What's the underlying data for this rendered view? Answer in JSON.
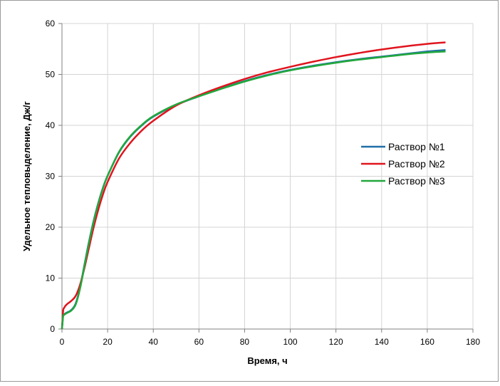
{
  "chart_data": {
    "type": "line",
    "xlabel": "Время, ч",
    "ylabel": "Удельное тепловыделение, Дж/г",
    "xlim": [
      0,
      180
    ],
    "ylim": [
      0,
      60
    ],
    "xticks": [
      0,
      20,
      40,
      60,
      80,
      100,
      120,
      140,
      160,
      180
    ],
    "yticks": [
      0,
      10,
      20,
      30,
      40,
      50,
      60
    ],
    "grid": true,
    "legend_position": "right",
    "series": [
      {
        "name": "Раствор №1",
        "color": "#1f6fa8",
        "x": [
          0,
          0.5,
          1,
          2,
          4,
          6,
          8,
          10,
          12,
          14,
          16,
          18,
          20,
          25,
          30,
          35,
          40,
          50,
          60,
          70,
          80,
          90,
          100,
          110,
          120,
          130,
          140,
          150,
          160,
          168
        ],
        "y": [
          0,
          2.6,
          2.9,
          3.2,
          3.7,
          5.0,
          8.3,
          13.0,
          17.5,
          21.5,
          24.9,
          27.8,
          30.1,
          34.7,
          37.8,
          40.0,
          41.7,
          44.0,
          45.7,
          47.3,
          48.7,
          49.9,
          50.9,
          51.7,
          52.4,
          53.0,
          53.5,
          54.0,
          54.5,
          54.8
        ]
      },
      {
        "name": "Раствор №2",
        "color": "#e0141e",
        "x": [
          0,
          0.5,
          1,
          2,
          4,
          6,
          8,
          10,
          12,
          14,
          16,
          18,
          20,
          25,
          30,
          35,
          40,
          50,
          60,
          70,
          80,
          90,
          100,
          110,
          120,
          130,
          140,
          150,
          160,
          168
        ],
        "y": [
          0,
          3.5,
          4.2,
          4.8,
          5.5,
          6.5,
          8.8,
          12.3,
          16.3,
          20.2,
          23.6,
          26.5,
          28.9,
          33.5,
          36.6,
          39.0,
          40.9,
          43.9,
          45.9,
          47.6,
          49.1,
          50.4,
          51.5,
          52.5,
          53.4,
          54.2,
          54.9,
          55.5,
          56.0,
          56.3
        ]
      },
      {
        "name": "Раствор №3",
        "color": "#22a83c",
        "x": [
          0,
          0.5,
          1,
          2,
          4,
          6,
          8,
          10,
          12,
          14,
          16,
          18,
          20,
          25,
          30,
          35,
          40,
          50,
          60,
          70,
          80,
          90,
          100,
          110,
          120,
          130,
          140,
          150,
          160,
          168
        ],
        "y": [
          0,
          2.5,
          2.8,
          3.1,
          3.6,
          4.8,
          8.1,
          12.8,
          17.3,
          21.3,
          24.8,
          27.7,
          30.1,
          34.8,
          37.9,
          40.1,
          41.8,
          44.1,
          45.7,
          47.2,
          48.6,
          49.8,
          50.8,
          51.6,
          52.3,
          52.9,
          53.4,
          53.9,
          54.3,
          54.5
        ]
      }
    ]
  }
}
